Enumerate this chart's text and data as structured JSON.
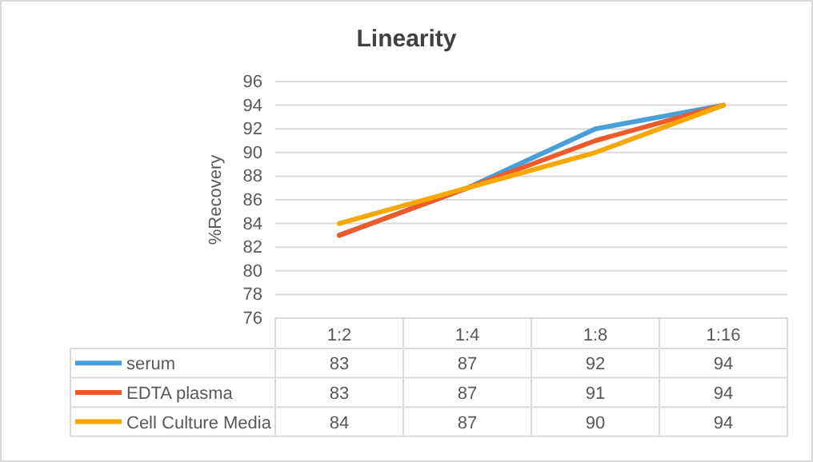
{
  "chart_data": {
    "type": "line",
    "title": "Linearity",
    "ylabel": "%Recovery",
    "categories": [
      "1:2",
      "1:4",
      "1:8",
      "1:16"
    ],
    "series": [
      {
        "name": "serum",
        "color": "#4a9fd8",
        "values": [
          83,
          87,
          92,
          94
        ]
      },
      {
        "name": "EDTA plasma",
        "color": "#ef5a2a",
        "values": [
          83,
          87,
          91,
          94
        ]
      },
      {
        "name": "Cell Culture Media",
        "color": "#f7a800",
        "values": [
          84,
          87,
          90,
          94
        ]
      }
    ],
    "ylim": [
      76,
      96
    ],
    "yticks": [
      76,
      78,
      80,
      82,
      84,
      86,
      88,
      90,
      92,
      94,
      96
    ],
    "grid": "y",
    "legend": "bottom",
    "data_labels": true,
    "marker": "none",
    "line_style": "solid"
  }
}
